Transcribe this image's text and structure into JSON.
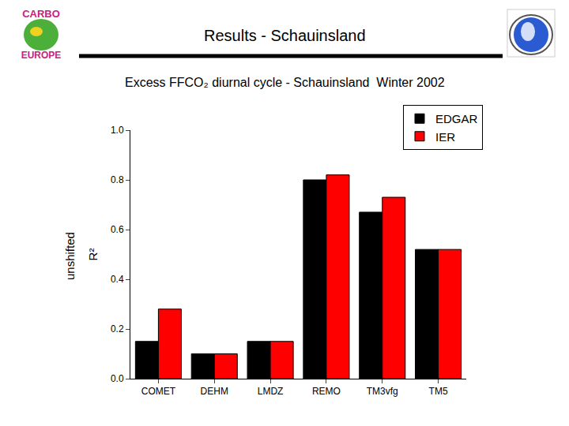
{
  "slide": {
    "title": "Results - Schauinsland",
    "logo_text": [
      "CARBO",
      "EUROPE"
    ]
  },
  "chart_data": {
    "type": "bar",
    "title": "Excess FFCO₂ diurnal cycle - Schauinsland  Winter 2002",
    "y_label": "R²",
    "annotations": [
      "unshifted"
    ],
    "categories": [
      "COMET",
      "DEHM",
      "LMDZ",
      "REMO",
      "TM3vfg",
      "TM5"
    ],
    "series": [
      {
        "name": "EDGAR",
        "color": "#000000",
        "values": [
          0.15,
          0.1,
          0.15,
          0.8,
          0.67,
          0.52
        ]
      },
      {
        "name": "IER",
        "color": "#ff0000",
        "values": [
          0.28,
          0.1,
          0.15,
          0.82,
          0.73,
          0.52
        ]
      }
    ],
    "ylim": [
      0,
      1.0
    ],
    "yticks": [
      {
        "value": 0,
        "label": "0.0"
      },
      0.2,
      0.4,
      0.6,
      0.8,
      {
        "value": 1.0,
        "label": "1.0"
      }
    ],
    "grid": false,
    "legend": "top right"
  }
}
